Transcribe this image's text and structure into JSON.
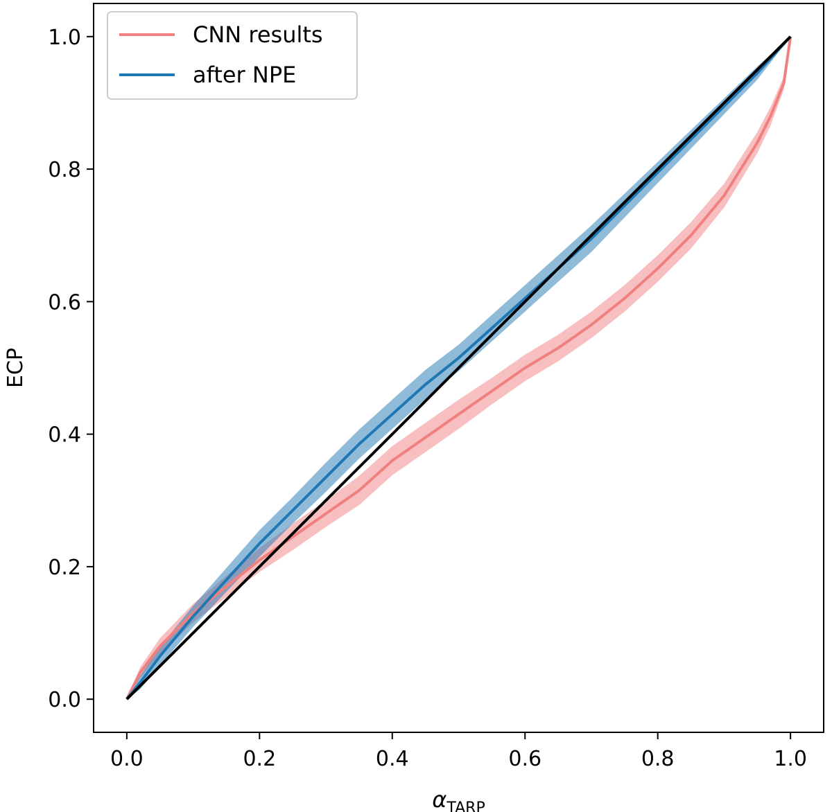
{
  "chart_data": {
    "type": "line",
    "title": "",
    "xlabel": "α",
    "xlabel_sub": "TARP",
    "ylabel": "ECP",
    "xlim": [
      -0.05,
      1.05
    ],
    "ylim": [
      -0.05,
      1.05
    ],
    "xticks": [
      0.0,
      0.2,
      0.4,
      0.6,
      0.8,
      1.0
    ],
    "yticks": [
      0.0,
      0.2,
      0.4,
      0.6,
      0.8,
      1.0
    ],
    "xtick_labels": [
      "0.0",
      "0.2",
      "0.4",
      "0.6",
      "0.8",
      "1.0"
    ],
    "ytick_labels": [
      "0.0",
      "0.2",
      "0.4",
      "0.6",
      "0.8",
      "1.0"
    ],
    "grid": false,
    "legend_position": "top-left",
    "colors": {
      "cnn": "#f08080",
      "npe": "#1f77b4",
      "reference": "#000000"
    },
    "series": [
      {
        "name": "CNN results",
        "key": "cnn",
        "x": [
          0.0,
          0.02,
          0.05,
          0.1,
          0.15,
          0.2,
          0.25,
          0.3,
          0.35,
          0.4,
          0.45,
          0.5,
          0.55,
          0.6,
          0.65,
          0.7,
          0.75,
          0.8,
          0.85,
          0.9,
          0.95,
          0.97,
          0.99,
          1.0
        ],
        "y": [
          0.0,
          0.04,
          0.08,
          0.13,
          0.17,
          0.21,
          0.245,
          0.28,
          0.315,
          0.36,
          0.395,
          0.43,
          0.465,
          0.5,
          0.53,
          0.565,
          0.605,
          0.65,
          0.7,
          0.76,
          0.84,
          0.88,
          0.93,
          1.0
        ],
        "band": [
          0.0,
          0.008,
          0.012,
          0.014,
          0.016,
          0.018,
          0.02,
          0.02,
          0.022,
          0.022,
          0.022,
          0.022,
          0.02,
          0.02,
          0.02,
          0.02,
          0.02,
          0.02,
          0.02,
          0.018,
          0.016,
          0.014,
          0.01,
          0.0
        ]
      },
      {
        "name": "after NPE",
        "key": "npe",
        "x": [
          0.0,
          0.02,
          0.05,
          0.1,
          0.15,
          0.2,
          0.25,
          0.3,
          0.35,
          0.4,
          0.45,
          0.5,
          0.55,
          0.6,
          0.65,
          0.7,
          0.75,
          0.8,
          0.85,
          0.9,
          0.95,
          1.0
        ],
        "y": [
          0.0,
          0.025,
          0.065,
          0.125,
          0.18,
          0.235,
          0.285,
          0.335,
          0.385,
          0.43,
          0.475,
          0.515,
          0.56,
          0.605,
          0.65,
          0.695,
          0.745,
          0.795,
          0.845,
          0.895,
          0.945,
          1.0
        ],
        "band": [
          0.0,
          0.01,
          0.014,
          0.016,
          0.018,
          0.02,
          0.02,
          0.022,
          0.022,
          0.022,
          0.022,
          0.02,
          0.02,
          0.02,
          0.02,
          0.02,
          0.018,
          0.016,
          0.014,
          0.012,
          0.01,
          0.0
        ]
      }
    ],
    "reference_line": {
      "x": [
        0.0,
        1.0
      ],
      "y": [
        0.0,
        1.0
      ]
    }
  },
  "legend": [
    {
      "label": "CNN results",
      "key": "cnn"
    },
    {
      "label": "after NPE",
      "key": "npe"
    }
  ]
}
